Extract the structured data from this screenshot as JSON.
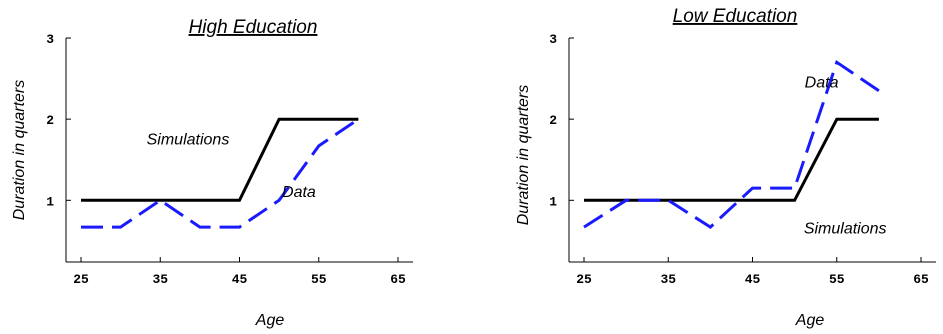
{
  "chart_data": [
    {
      "type": "line",
      "title": "High Education",
      "xlabel": "Age",
      "ylabel": "Duration in quarters",
      "xlim": [
        25,
        65
      ],
      "ylim": [
        0.4,
        3
      ],
      "xticks": [
        "25",
        "35",
        "45",
        "55",
        "65"
      ],
      "yticks": [
        "1",
        "2",
        "3"
      ],
      "grid": false,
      "series": [
        {
          "name": "Simulations",
          "color": "#000000",
          "style": "solid",
          "x": [
            25,
            30,
            35,
            40,
            45,
            50,
            55,
            60
          ],
          "y": [
            1,
            1,
            1,
            1,
            1,
            2,
            2,
            2
          ]
        },
        {
          "name": "Data",
          "color": "#1a1aff",
          "style": "dashed",
          "x": [
            25,
            30,
            35,
            40,
            45,
            50,
            55,
            60
          ],
          "y": [
            0.67,
            0.67,
            1,
            0.67,
            0.67,
            1,
            1.67,
            2
          ]
        }
      ],
      "annotations": [
        {
          "text": "Simulations",
          "x": 38.5,
          "y": 1.75
        },
        {
          "text": "Data",
          "x": 52.5,
          "y": 1.1
        }
      ]
    },
    {
      "type": "line",
      "title": "Low Education",
      "xlabel": "Age",
      "ylabel": "Duration in quarters",
      "xlim": [
        25,
        65
      ],
      "ylim": [
        0.4,
        3
      ],
      "xticks": [
        "25",
        "35",
        "45",
        "55",
        "65"
      ],
      "yticks": [
        "1",
        "2",
        "3"
      ],
      "grid": false,
      "series": [
        {
          "name": "Simulations",
          "color": "#000000",
          "style": "solid",
          "x": [
            25,
            30,
            35,
            40,
            45,
            50,
            55,
            60
          ],
          "y": [
            1,
            1,
            1,
            1,
            1,
            1,
            2,
            2
          ]
        },
        {
          "name": "Data",
          "color": "#1a1aff",
          "style": "dashed",
          "x": [
            25,
            30,
            35,
            40,
            45,
            50,
            55,
            60
          ],
          "y": [
            0.67,
            1,
            1,
            0.67,
            1.15,
            1.15,
            2.7,
            2.35
          ]
        }
      ],
      "annotations": [
        {
          "text": "Data",
          "x": 53.2,
          "y": 2.45
        },
        {
          "text": "Simulations",
          "x": 56,
          "y": 0.65
        }
      ]
    }
  ]
}
